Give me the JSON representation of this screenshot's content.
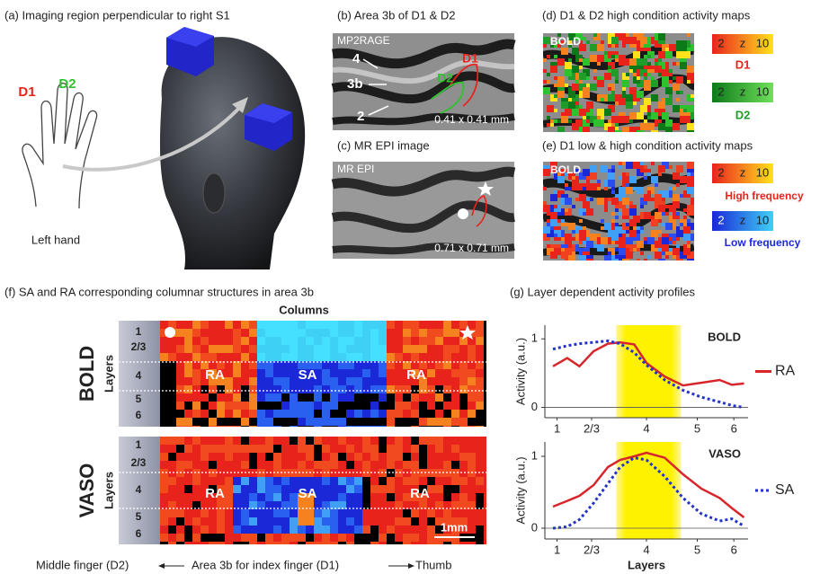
{
  "panel_a": {
    "title": "(a) Imaging region perpendicular to right S1",
    "d1": "D1",
    "d2": "D2",
    "hand": "Left hand"
  },
  "panel_b": {
    "title": "(b) Area 3b of D1 & D2",
    "sequence": "MP2RAGE",
    "labels": [
      "4",
      "3b",
      "2"
    ],
    "d1": "D1",
    "d2": "D2",
    "resolution": "0.41 x 0.41 mm"
  },
  "panel_c": {
    "title": "(c) MR EPI image",
    "sequence": "MR EPI",
    "resolution": "0.71 x 0.71 mm"
  },
  "panel_d": {
    "title": "(d) D1 & D2 high condition activity maps",
    "contrast": "BOLD",
    "colorbars": [
      {
        "min": 2,
        "unit": "z",
        "max": 10,
        "name": "D1"
      },
      {
        "min": 2,
        "unit": "z",
        "max": 10,
        "name": "D2"
      }
    ]
  },
  "panel_e": {
    "title": "(e) D1 low & high condition activity maps",
    "contrast": "BOLD",
    "colorbars": [
      {
        "min": 2,
        "unit": "z",
        "max": 10,
        "name": "High frequency"
      },
      {
        "min": 2,
        "unit": "z",
        "max": 10,
        "name": "Low frequency"
      }
    ]
  },
  "panel_f": {
    "title": "(f) SA and RA corresponding columnar structures in area 3b",
    "columns_label": "Columns",
    "maps": [
      {
        "contrast": "BOLD"
      },
      {
        "contrast": "VASO"
      }
    ],
    "layers_label": "Layers",
    "layers": [
      "1",
      "2/3",
      "4",
      "5",
      "6"
    ],
    "regions": [
      "RA",
      "SA",
      "RA"
    ],
    "scale": "1mm",
    "footer_left": "Middle finger (D2)",
    "footer_mid": "Area 3b for index finger (D1)",
    "footer_right": "Thumb"
  },
  "panel_g": {
    "title": "(g) Layer dependent activity profiles",
    "x_label": "Layers",
    "charts": [
      {
        "type": "line",
        "title": "BOLD",
        "ylabel": "Activity (a.u.)",
        "x": [
          0.04,
          0.11,
          0.17,
          0.24,
          0.31,
          0.37,
          0.44,
          0.5,
          0.59,
          0.68,
          0.77,
          0.86,
          0.92,
          0.98
        ],
        "xlim": [
          0,
          1
        ],
        "xticks": [
          {
            "value": 0.06,
            "label": "1"
          },
          {
            "value": 0.23,
            "label": "2/3"
          },
          {
            "value": 0.5,
            "label": "4"
          },
          {
            "value": 0.75,
            "label": "5"
          },
          {
            "value": 0.93,
            "label": "6"
          }
        ],
        "ylim": [
          -0.15,
          1.2
        ],
        "yticks": [
          0,
          1
        ],
        "highlight": [
          0.35,
          0.67
        ],
        "series": [
          {
            "name": "RA",
            "color": "#d7262b",
            "style": "solid",
            "values": [
              0.6,
              0.72,
              0.6,
              0.82,
              0.93,
              0.95,
              0.92,
              0.65,
              0.45,
              0.32,
              0.36,
              0.4,
              0.33,
              0.35
            ]
          },
          {
            "name": "SA",
            "color": "#2433c8",
            "style": "dotted",
            "values": [
              0.85,
              0.9,
              0.93,
              0.95,
              0.97,
              0.93,
              0.8,
              0.62,
              0.4,
              0.25,
              0.15,
              0.08,
              0.03,
              0.0
            ]
          }
        ]
      },
      {
        "type": "line",
        "title": "VASO",
        "ylabel": "Activity (a.u.)",
        "x": [
          0.04,
          0.11,
          0.17,
          0.24,
          0.31,
          0.37,
          0.44,
          0.5,
          0.59,
          0.68,
          0.77,
          0.86,
          0.92,
          0.98
        ],
        "xlim": [
          0,
          1
        ],
        "xticks": [
          {
            "value": 0.06,
            "label": "1"
          },
          {
            "value": 0.23,
            "label": "2/3"
          },
          {
            "value": 0.5,
            "label": "4"
          },
          {
            "value": 0.75,
            "label": "5"
          },
          {
            "value": 0.93,
            "label": "6"
          }
        ],
        "ylim": [
          -0.15,
          1.2
        ],
        "yticks": [
          0,
          1
        ],
        "highlight": [
          0.35,
          0.67
        ],
        "series": [
          {
            "name": "RA",
            "color": "#d7262b",
            "style": "solid",
            "values": [
              0.3,
              0.38,
              0.45,
              0.6,
              0.85,
              0.95,
              1.0,
              1.05,
              0.98,
              0.75,
              0.55,
              0.42,
              0.28,
              0.15
            ]
          },
          {
            "name": "SA",
            "color": "#2433c8",
            "style": "dotted",
            "values": [
              0.0,
              0.02,
              0.12,
              0.35,
              0.62,
              0.85,
              0.98,
              0.95,
              0.72,
              0.42,
              0.2,
              0.1,
              0.13,
              0.03
            ]
          }
        ]
      }
    ]
  }
}
